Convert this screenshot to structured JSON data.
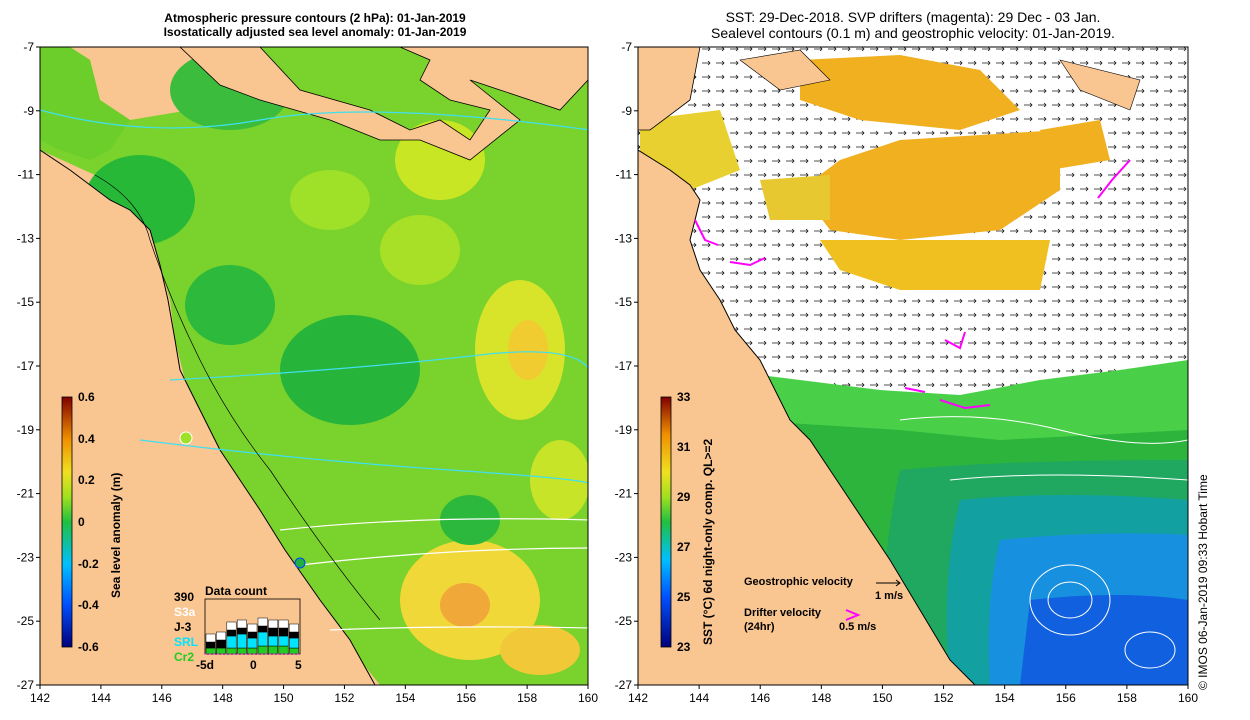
{
  "left_panel": {
    "title_line1": "Atmospheric pressure contours (2 hPa): 01-Jan-2019",
    "title_line2": "Isostatically adjusted sea level anomaly: 01-Jan-2019",
    "colorbar_label": "Sea level anomaly (m)",
    "colorbar_ticks": [
      "0.6",
      "0.4",
      "0.2",
      "0",
      "-0.2",
      "-0.4",
      "-0.6"
    ],
    "data_count": {
      "title": "Data count",
      "total": "390",
      "sources": [
        "S3a",
        "J-3",
        "SRL",
        "Cr2"
      ],
      "source_colors": [
        "#ffffff",
        "#000000",
        "#00e5ff",
        "#22cc22"
      ],
      "x_ticks": [
        "-5d",
        "0",
        "5"
      ]
    }
  },
  "right_panel": {
    "title_line1": "SST: 29-Dec-2018. SVP drifters (magenta): 29 Dec - 03 Jan.",
    "title_line2": "Sealevel contours (0.1 m) and geostrophic velocity: 01-Jan-2019.",
    "colorbar_label": "SST (°C) 6d night-only comp. QL>=2",
    "colorbar_ticks": [
      "33",
      "31",
      "29",
      "27",
      "25",
      "23"
    ],
    "legend": {
      "geostrophic_label": "Geostrophic velocity",
      "geostrophic_scale": "1 m/s",
      "drifter_label": "Drifter velocity",
      "drifter_sublabel": "(24hr)",
      "drifter_scale": "0.5 m/s"
    }
  },
  "axes": {
    "lat_ticks": [
      "-7",
      "-9",
      "-11",
      "-13",
      "-15",
      "-17",
      "-19",
      "-21",
      "-23",
      "-25",
      "-27"
    ],
    "lon_ticks": [
      "142",
      "144",
      "146",
      "148",
      "150",
      "152",
      "154",
      "156",
      "158",
      "160"
    ]
  },
  "credit": "©  IMOS 06-Jan-2019 09:33 Hobart Time",
  "colors": {
    "land": "#f9c591",
    "drifter": "#ff00ff"
  }
}
